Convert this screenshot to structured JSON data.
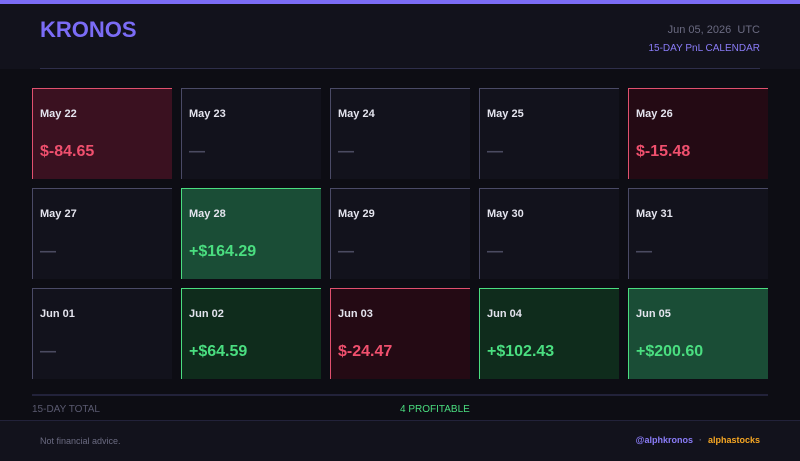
{
  "header": {
    "title": "KRONOS",
    "date": "Jun 05, 2026",
    "timezone": "UTC",
    "subtitle": "15-DAY PnL CALENDAR"
  },
  "days": [
    {
      "date": "May 22",
      "pnl": "$-84.65"
    },
    {
      "date": "May 23",
      "pnl": "—"
    },
    {
      "date": "May 24",
      "pnl": "—"
    },
    {
      "date": "May 25",
      "pnl": "—"
    },
    {
      "date": "May 26",
      "pnl": "$-15.48"
    },
    {
      "date": "May 27",
      "pnl": "—"
    },
    {
      "date": "May 28",
      "pnl": "+$164.29"
    },
    {
      "date": "May 29",
      "pnl": "—"
    },
    {
      "date": "May 30",
      "pnl": "—"
    },
    {
      "date": "May 31",
      "pnl": "—"
    },
    {
      "date": "Jun 01",
      "pnl": "—"
    },
    {
      "date": "Jun 02",
      "pnl": "+$64.59"
    },
    {
      "date": "Jun 03",
      "pnl": "$-24.47"
    },
    {
      "date": "Jun 04",
      "pnl": "+$102.43"
    },
    {
      "date": "Jun 05",
      "pnl": "+$200.60"
    }
  ],
  "summary": {
    "label": "15-DAY TOTAL",
    "profitable": "4 PROFITABLE"
  },
  "footer": {
    "disclaimer": "Not financial advice.",
    "handle": "@alphkronos",
    "separator": "·",
    "brand": "alphastocks"
  }
}
